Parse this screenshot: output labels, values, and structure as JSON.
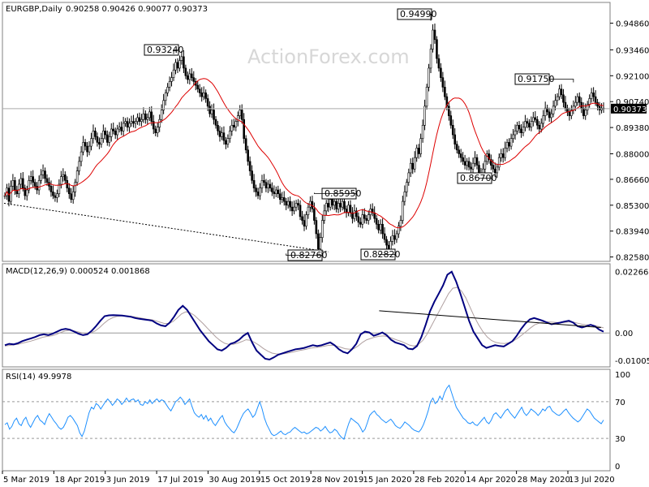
{
  "colors": {
    "candle": "#000000",
    "ma": "#dd0000",
    "macd_main": "#000080",
    "macd_signal": "#b0a0a0",
    "rsi": "#1e90ff",
    "level_line": "#999999",
    "frame": "#808080"
  },
  "chart_data": [
    {
      "type": "candlestick",
      "title": "EURGBP,Daily",
      "ohlc": [
        "0.90258",
        "0.90426",
        "0.90077",
        "0.90373"
      ],
      "watermark": "ActionForex.com",
      "ylim": [
        0.8235,
        0.9595
      ],
      "y_ticks": [
        "0.94860",
        "0.93460",
        "0.92100",
        "0.90740",
        "0.89380",
        "0.88000",
        "0.86660",
        "0.85300",
        "0.83940",
        "0.82580"
      ],
      "current_price": "0.90373",
      "annotations": [
        "0.93240",
        "0.94990",
        "0.91750",
        "0.85950",
        "0.86700",
        "0.82760",
        "0.82820"
      ],
      "x_ticks": [
        "5 Mar 2019",
        "18 Apr 2019",
        "3 Jun 2019",
        "17 Jul 2019",
        "30 Aug 2019",
        "15 Oct 2019",
        "28 Nov 2019",
        "15 Jan 2020",
        "28 Feb 2020",
        "14 Apr 2020",
        "28 May 2020",
        "13 Jul 2020"
      ],
      "close_series": [
        0.858,
        0.862,
        0.855,
        0.863,
        0.866,
        0.861,
        0.859,
        0.864,
        0.867,
        0.862,
        0.858,
        0.861,
        0.866,
        0.868,
        0.865,
        0.863,
        0.861,
        0.866,
        0.869,
        0.871,
        0.867,
        0.865,
        0.863,
        0.86,
        0.858,
        0.857,
        0.859,
        0.864,
        0.868,
        0.869,
        0.866,
        0.862,
        0.859,
        0.856,
        0.86,
        0.865,
        0.871,
        0.876,
        0.881,
        0.886,
        0.884,
        0.881,
        0.884,
        0.888,
        0.892,
        0.889,
        0.886,
        0.885,
        0.888,
        0.892,
        0.89,
        0.886,
        0.889,
        0.893,
        0.892,
        0.89,
        0.893,
        0.894,
        0.892,
        0.896,
        0.897,
        0.894,
        0.896,
        0.897,
        0.896,
        0.897,
        0.899,
        0.897,
        0.898,
        0.901,
        0.898,
        0.899,
        0.902,
        0.897,
        0.893,
        0.891,
        0.894,
        0.898,
        0.903,
        0.908,
        0.912,
        0.915,
        0.918,
        0.92,
        0.924,
        0.928,
        0.925,
        0.929,
        0.931,
        0.925,
        0.921,
        0.919,
        0.922,
        0.92,
        0.918,
        0.916,
        0.914,
        0.912,
        0.91,
        0.912,
        0.909,
        0.905,
        0.901,
        0.903,
        0.898,
        0.895,
        0.892,
        0.889,
        0.891,
        0.887,
        0.885,
        0.888,
        0.892,
        0.895,
        0.894,
        0.897,
        0.9,
        0.903,
        0.898,
        0.888,
        0.882,
        0.876,
        0.871,
        0.866,
        0.862,
        0.86,
        0.858,
        0.862,
        0.866,
        0.865,
        0.862,
        0.864,
        0.862,
        0.86,
        0.859,
        0.861,
        0.859,
        0.856,
        0.857,
        0.855,
        0.853,
        0.855,
        0.852,
        0.85,
        0.852,
        0.854,
        0.853,
        0.847,
        0.845,
        0.842,
        0.848,
        0.852,
        0.855,
        0.851,
        0.845,
        0.838,
        0.83,
        0.836,
        0.845,
        0.85,
        0.854,
        0.852,
        0.856,
        0.853,
        0.855,
        0.851,
        0.854,
        0.852,
        0.855,
        0.851,
        0.849,
        0.853,
        0.849,
        0.846,
        0.85,
        0.847,
        0.844,
        0.843,
        0.848,
        0.846,
        0.845,
        0.848,
        0.851,
        0.849,
        0.846,
        0.843,
        0.84,
        0.843,
        0.838,
        0.835,
        0.832,
        0.83,
        0.834,
        0.837,
        0.835,
        0.838,
        0.842,
        0.845,
        0.855,
        0.86,
        0.865,
        0.87,
        0.875,
        0.872,
        0.878,
        0.883,
        0.88,
        0.888,
        0.895,
        0.905,
        0.915,
        0.925,
        0.935,
        0.945,
        0.94,
        0.93,
        0.925,
        0.92,
        0.915,
        0.91,
        0.905,
        0.9,
        0.895,
        0.89,
        0.885,
        0.882,
        0.88,
        0.878,
        0.876,
        0.874,
        0.876,
        0.873,
        0.872,
        0.875,
        0.878,
        0.874,
        0.87,
        0.868,
        0.872,
        0.876,
        0.88,
        0.877,
        0.874,
        0.872,
        0.87,
        0.873,
        0.878,
        0.88,
        0.878,
        0.883,
        0.886,
        0.884,
        0.888,
        0.89,
        0.892,
        0.895,
        0.893,
        0.891,
        0.894,
        0.897,
        0.896,
        0.894,
        0.897,
        0.899,
        0.898,
        0.895,
        0.893,
        0.896,
        0.9,
        0.904,
        0.902,
        0.899,
        0.901,
        0.905,
        0.908,
        0.91,
        0.914,
        0.911,
        0.907,
        0.904,
        0.902,
        0.9,
        0.903,
        0.905,
        0.907,
        0.91,
        0.907,
        0.904,
        0.9,
        0.903,
        0.906,
        0.909,
        0.912,
        0.91,
        0.907,
        0.905,
        0.903,
        0.904,
        0.9037
      ]
    },
    {
      "type": "line",
      "title": "MACD(12,26,9) 0.000524 0.001868",
      "ylim": [
        -0.0125,
        0.0255
      ],
      "y_ticks": [
        "0.022662",
        "0.00",
        "-0.010052"
      ],
      "series": [
        {
          "values": [
            -0.0045,
            -0.004,
            -0.0042,
            -0.0038,
            -0.003,
            -0.0025,
            -0.002,
            -0.0015,
            -0.0008,
            -0.0005,
            -0.0008,
            -0.0003,
            0.0005,
            0.0012,
            0.0015,
            0.0012,
            0.0005,
            -0.0003,
            -0.0008,
            -0.0005,
            0.0008,
            0.0025,
            0.0045,
            0.0062,
            0.0065,
            0.0066,
            0.0065,
            0.0064,
            0.0062,
            0.006,
            0.0055,
            0.0052,
            0.005,
            0.0048,
            0.0045,
            0.0035,
            0.0028,
            0.0025,
            0.0038,
            0.006,
            0.0085,
            0.01,
            0.0085,
            0.006,
            0.0035,
            0.001,
            -0.001,
            -0.003,
            -0.0045,
            -0.006,
            -0.0065,
            -0.0055,
            -0.004,
            -0.0035,
            -0.0025,
            -0.001,
            0.0,
            -0.0035,
            -0.0065,
            -0.008,
            -0.0095,
            -0.0098,
            -0.009,
            -0.008,
            -0.0075,
            -0.007,
            -0.0065,
            -0.006,
            -0.0058,
            -0.0055,
            -0.005,
            -0.0045,
            -0.0048,
            -0.0045,
            -0.004,
            -0.0035,
            -0.0045,
            -0.006,
            -0.007,
            -0.0075,
            -0.006,
            -0.004,
            -0.0005,
            0.0005,
            0.0002,
            -0.001,
            -0.0005,
            0.0002,
            -0.0008,
            -0.0025,
            -0.0035,
            -0.004,
            -0.0045,
            -0.0058,
            -0.006,
            -0.0048,
            -0.0015,
            0.003,
            0.008,
            0.0115,
            0.0145,
            0.0175,
            0.0215,
            0.0226,
            0.019,
            0.0145,
            0.0095,
            0.0045,
            0.0005,
            -0.002,
            -0.0045,
            -0.0055,
            -0.005,
            -0.0045,
            -0.0048,
            -0.005,
            -0.004,
            -0.003,
            -0.001,
            0.0015,
            0.0035,
            0.005,
            0.0055,
            0.005,
            0.0045,
            0.0038,
            0.0032,
            0.0035,
            0.0038,
            0.0042,
            0.0045,
            0.0038,
            0.0025,
            0.002,
            0.0025,
            0.003,
            0.0025,
            0.0012,
            0.0005
          ]
        },
        {
          "values": [
            -0.0048,
            -0.0046,
            -0.0044,
            -0.0042,
            -0.0038,
            -0.0034,
            -0.003,
            -0.0025,
            -0.002,
            -0.0015,
            -0.0012,
            -0.001,
            -0.0005,
            0.0002,
            0.0008,
            0.001,
            0.0008,
            0.0004,
            0.0,
            -0.0002,
            0.0,
            0.0008,
            0.002,
            0.0035,
            0.0048,
            0.0056,
            0.0061,
            0.0063,
            0.0063,
            0.0062,
            0.006,
            0.0057,
            0.0054,
            0.0051,
            0.0049,
            0.0045,
            0.004,
            0.0035,
            0.0035,
            0.0042,
            0.0055,
            0.007,
            0.0078,
            0.0075,
            0.0065,
            0.005,
            0.0035,
            0.0018,
            0.0002,
            -0.0015,
            -0.0028,
            -0.0038,
            -0.0042,
            -0.0042,
            -0.0038,
            -0.0032,
            -0.0025,
            -0.0027,
            -0.0035,
            -0.0045,
            -0.0057,
            -0.0067,
            -0.0074,
            -0.0077,
            -0.0078,
            -0.0076,
            -0.0073,
            -0.007,
            -0.0066,
            -0.0063,
            -0.006,
            -0.0056,
            -0.0054,
            -0.0052,
            -0.0049,
            -0.0046,
            -0.0045,
            -0.0048,
            -0.0053,
            -0.0058,
            -0.006,
            -0.0058,
            -0.0048,
            -0.0035,
            -0.0025,
            -0.002,
            -0.0015,
            -0.0012,
            -0.0011,
            -0.0014,
            -0.002,
            -0.0026,
            -0.0031,
            -0.0038,
            -0.0045,
            -0.0048,
            -0.0042,
            -0.0028,
            -0.0005,
            0.0025,
            0.0055,
            0.0085,
            0.0115,
            0.0145,
            0.0165,
            0.0168,
            0.0155,
            0.013,
            0.0095,
            0.006,
            0.003,
            0.0005,
            -0.0015,
            -0.0028,
            -0.0035,
            -0.0038,
            -0.0039,
            -0.0036,
            -0.003,
            -0.002,
            -0.0008,
            0.0005,
            0.0018,
            0.003,
            0.0036,
            0.004,
            0.0041,
            0.004,
            0.0039,
            0.0038,
            0.0039,
            0.0041,
            0.004,
            0.0036,
            0.0032,
            0.003,
            0.003,
            0.0027,
            0.0023,
            0.0019
          ]
        }
      ],
      "trend_line": [
        [
          0.62,
          0.0082
        ],
        [
          0.985,
          0.002
        ]
      ]
    },
    {
      "type": "line",
      "title": "RSI(14) 49.9978",
      "ylim": [
        0,
        100
      ],
      "y_ticks": [
        "100",
        "70",
        "30",
        "0"
      ],
      "levels": [
        70,
        30
      ],
      "series": [
        {
          "values": [
            45,
            47,
            40,
            43,
            49,
            52,
            46,
            44,
            50,
            53,
            46,
            42,
            47,
            52,
            55,
            50,
            48,
            45,
            52,
            57,
            53,
            49,
            46,
            42,
            40,
            42,
            47,
            53,
            55,
            52,
            48,
            44,
            36,
            32,
            38,
            48,
            58,
            64,
            62,
            68,
            66,
            62,
            66,
            70,
            73,
            70,
            66,
            69,
            73,
            71,
            67,
            70,
            74,
            70,
            72,
            73,
            70,
            72,
            67,
            66,
            70,
            68,
            72,
            68,
            71,
            73,
            70,
            72,
            71,
            67,
            63,
            60,
            65,
            70,
            72,
            75,
            72,
            67,
            70,
            73,
            65,
            58,
            55,
            53,
            56,
            51,
            55,
            49,
            52,
            47,
            44,
            48,
            52,
            55,
            48,
            44,
            41,
            38,
            36,
            40,
            46,
            52,
            57,
            60,
            62,
            58,
            53,
            56,
            63,
            70,
            62,
            52,
            45,
            40,
            35,
            33,
            34,
            36,
            38,
            35,
            34,
            36,
            37,
            40,
            42,
            40,
            38,
            36,
            37,
            35,
            36,
            38,
            40,
            42,
            41,
            38,
            40,
            43,
            39,
            36,
            37,
            40,
            38,
            34,
            31,
            29,
            38,
            46,
            52,
            50,
            48,
            46,
            42,
            37,
            40,
            47,
            55,
            58,
            60,
            56,
            54,
            51,
            49,
            47,
            49,
            51,
            48,
            44,
            42,
            41,
            44,
            48,
            46,
            44,
            41,
            39,
            38,
            37,
            40,
            45,
            52,
            60,
            70,
            74,
            68,
            70,
            76,
            72,
            80,
            85,
            88,
            80,
            72,
            64,
            60,
            56,
            52,
            50,
            47,
            46,
            48,
            45,
            44,
            47,
            50,
            53,
            48,
            46,
            50,
            56,
            58,
            55,
            52,
            56,
            60,
            62,
            58,
            55,
            52,
            56,
            60,
            64,
            58,
            55,
            58,
            62,
            60,
            58,
            55,
            58,
            62,
            60,
            64,
            65,
            60,
            58,
            56,
            55,
            57,
            60,
            62,
            58,
            55,
            52,
            50,
            48,
            50,
            54,
            58,
            62,
            60,
            56,
            52,
            50,
            48,
            46,
            50
          ]
        }
      ]
    }
  ]
}
